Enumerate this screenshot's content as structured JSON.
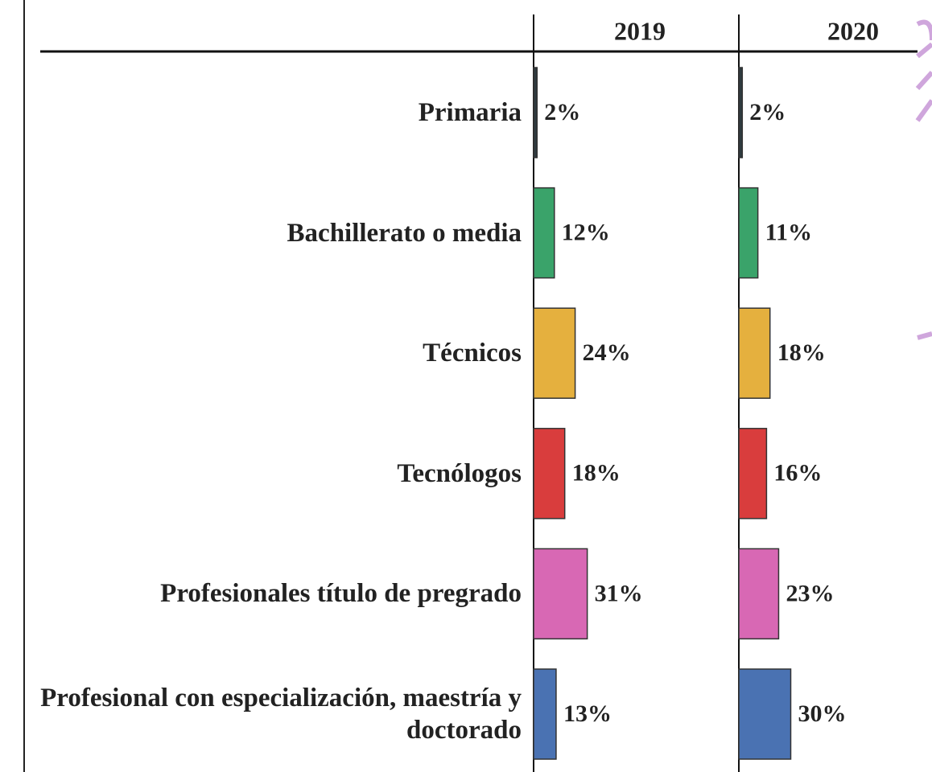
{
  "chart_data": {
    "type": "bar",
    "categories": [
      "Primaria",
      "Bachillerato o media",
      "Técnicos",
      "Tecnólogos",
      "Profesionales título de pregrado",
      "Profesional con especialización, maestría y doctorado"
    ],
    "colors": [
      "#2f3b3f",
      "#3aa36a",
      "#e5b03e",
      "#d93d3d",
      "#d868b4",
      "#4a72b2"
    ],
    "series": [
      {
        "name": "2019",
        "values": [
          2,
          12,
          24,
          18,
          31,
          13
        ],
        "value_labels": [
          "2%",
          "12%",
          "24%",
          "18%",
          "31%",
          "13%"
        ]
      },
      {
        "name": "2020",
        "values": [
          2,
          11,
          18,
          16,
          23,
          30
        ],
        "value_labels": [
          "2%",
          "11%",
          "18%",
          "16%",
          "23%",
          "30%"
        ]
      }
    ]
  }
}
